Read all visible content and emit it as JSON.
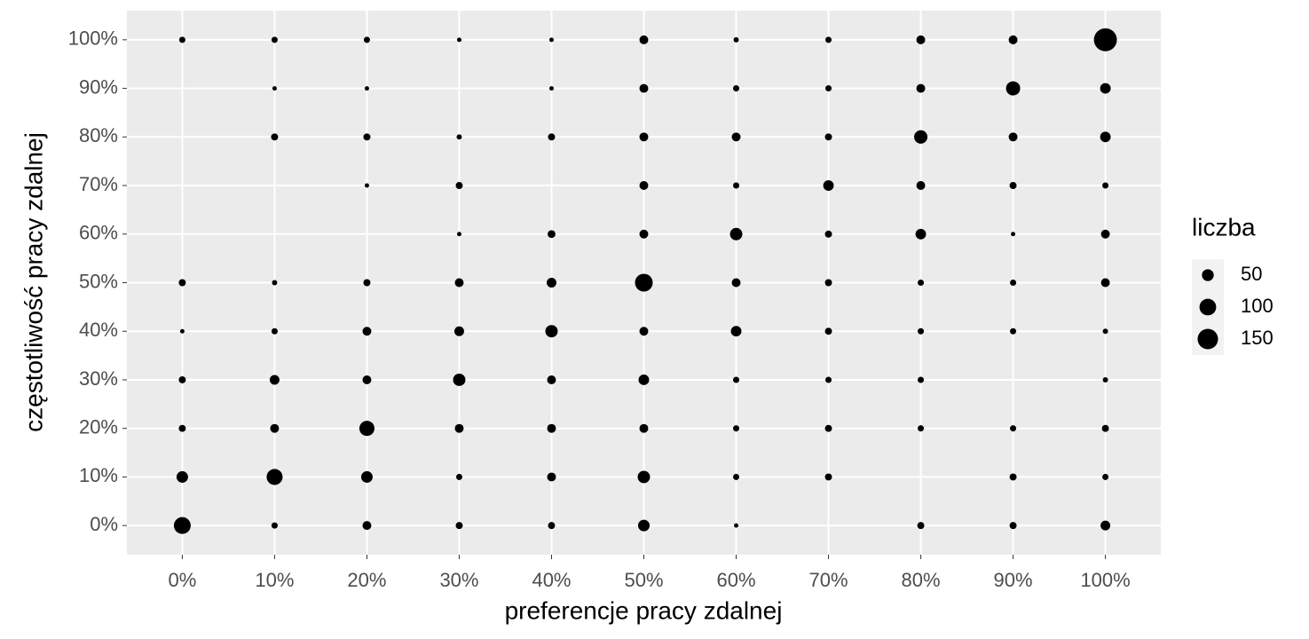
{
  "chart_data": {
    "type": "scatter",
    "x_label": "preferencje pracy zdalnej",
    "y_label": "częstotliwość pracy zdalnej",
    "xlim": [
      -6,
      106
    ],
    "ylim": [
      -6,
      106
    ],
    "xticks": [
      {
        "value": 0,
        "label": "0%"
      },
      {
        "value": 10,
        "label": "10%"
      },
      {
        "value": 20,
        "label": "20%"
      },
      {
        "value": 30,
        "label": "30%"
      },
      {
        "value": 40,
        "label": "40%"
      },
      {
        "value": 50,
        "label": "50%"
      },
      {
        "value": 60,
        "label": "60%"
      },
      {
        "value": 70,
        "label": "70%"
      },
      {
        "value": 80,
        "label": "80%"
      },
      {
        "value": 90,
        "label": "90%"
      },
      {
        "value": 100,
        "label": "100%"
      }
    ],
    "yticks": [
      {
        "value": 0,
        "label": "0%"
      },
      {
        "value": 10,
        "label": "10%"
      },
      {
        "value": 20,
        "label": "20%"
      },
      {
        "value": 30,
        "label": "30%"
      },
      {
        "value": 40,
        "label": "40%"
      },
      {
        "value": 50,
        "label": "50%"
      },
      {
        "value": 60,
        "label": "60%"
      },
      {
        "value": 70,
        "label": "70%"
      },
      {
        "value": 80,
        "label": "80%"
      },
      {
        "value": 90,
        "label": "90%"
      },
      {
        "value": 100,
        "label": "100%"
      }
    ],
    "grid": true,
    "size_legend": {
      "title": "liczba",
      "values": [
        50,
        100,
        150
      ]
    },
    "series": [
      {
        "color": "#000000",
        "x": [
          0,
          10,
          20,
          30,
          40,
          50,
          60,
          70,
          80,
          90,
          100,
          10,
          20,
          40,
          50,
          60,
          70,
          80,
          90,
          100,
          10,
          20,
          30,
          40,
          50,
          60,
          70,
          80,
          90,
          100,
          20,
          30,
          50,
          60,
          70,
          80,
          90,
          100,
          30,
          40,
          50,
          60,
          70,
          80,
          90,
          100,
          0,
          10,
          20,
          30,
          40,
          50,
          60,
          70,
          80,
          90,
          100,
          0,
          10,
          20,
          30,
          40,
          50,
          60,
          70,
          80,
          90,
          100,
          0,
          10,
          20,
          30,
          40,
          50,
          60,
          70,
          80,
          100,
          0,
          10,
          20,
          30,
          40,
          50,
          60,
          70,
          80,
          90,
          100,
          0,
          10,
          20,
          30,
          40,
          50,
          60,
          70,
          90,
          100,
          0,
          10,
          20,
          30,
          40,
          50,
          60,
          80,
          90,
          100
        ],
        "y": [
          100,
          100,
          100,
          100,
          100,
          100,
          100,
          100,
          100,
          100,
          100,
          90,
          90,
          90,
          90,
          90,
          90,
          90,
          90,
          90,
          80,
          80,
          80,
          80,
          80,
          80,
          80,
          80,
          80,
          80,
          70,
          70,
          70,
          70,
          70,
          70,
          70,
          70,
          60,
          60,
          60,
          60,
          60,
          60,
          60,
          60,
          50,
          50,
          50,
          50,
          50,
          50,
          50,
          50,
          50,
          50,
          50,
          40,
          40,
          40,
          40,
          40,
          40,
          40,
          40,
          40,
          40,
          40,
          30,
          30,
          30,
          30,
          30,
          30,
          30,
          30,
          30,
          30,
          20,
          20,
          20,
          20,
          20,
          20,
          20,
          20,
          20,
          20,
          20,
          10,
          10,
          10,
          10,
          10,
          10,
          10,
          10,
          10,
          10,
          0,
          0,
          0,
          0,
          0,
          0,
          0,
          0,
          0,
          0
        ],
        "sizes": [
          14,
          14,
          14,
          7,
          7,
          28,
          10,
          14,
          28,
          28,
          190,
          7,
          7,
          7,
          28,
          14,
          14,
          28,
          72,
          40,
          18,
          18,
          10,
          18,
          28,
          28,
          18,
          64,
          28,
          40,
          7,
          18,
          28,
          14,
          40,
          28,
          18,
          14,
          7,
          22,
          28,
          55,
          18,
          40,
          7,
          28,
          18,
          10,
          18,
          28,
          34,
          113,
          28,
          18,
          14,
          14,
          28,
          7,
          14,
          28,
          34,
          55,
          28,
          40,
          18,
          14,
          14,
          10,
          18,
          34,
          28,
          55,
          28,
          40,
          14,
          14,
          14,
          10,
          18,
          28,
          82,
          28,
          28,
          28,
          14,
          18,
          14,
          14,
          18,
          48,
          92,
          48,
          14,
          28,
          55,
          14,
          18,
          18,
          14,
          102,
          14,
          28,
          18,
          18,
          48,
          7,
          18,
          18,
          34
        ]
      }
    ]
  }
}
